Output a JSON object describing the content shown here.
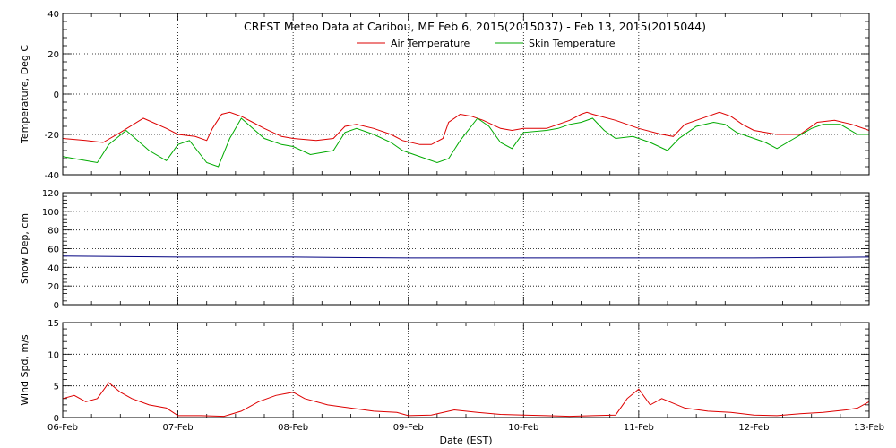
{
  "chart_data": {
    "title": "CREST Meteo Data at Caribou, ME   Feb  6, 2015(2015037) - Feb 13, 2015(2015044)",
    "xlabel": "Date (EST)",
    "x_ticks": [
      "06-Feb",
      "07-Feb",
      "08-Feb",
      "09-Feb",
      "10-Feb",
      "11-Feb",
      "12-Feb",
      "13-Feb"
    ],
    "x_range_days": [
      0,
      7
    ],
    "grid": true,
    "panels": [
      {
        "id": "temperature",
        "type": "line",
        "ylabel": "Temperature, Deg C",
        "ylim": [
          -40,
          40
        ],
        "y_ticks": [
          -40,
          -20,
          0,
          20,
          40
        ],
        "legend": "top-center",
        "series": [
          {
            "name": "Air Temperature",
            "color": "#dd0000",
            "x": [
              0,
              0.2,
              0.35,
              0.5,
              0.7,
              0.9,
              1.0,
              1.15,
              1.25,
              1.3,
              1.38,
              1.45,
              1.55,
              1.65,
              1.75,
              1.9,
              2.0,
              2.2,
              2.35,
              2.45,
              2.55,
              2.7,
              2.85,
              2.95,
              3.1,
              3.2,
              3.3,
              3.35,
              3.45,
              3.55,
              3.65,
              3.8,
              3.9,
              4.0,
              4.2,
              4.3,
              4.4,
              4.5,
              4.55,
              4.6,
              4.8,
              4.9,
              5.0,
              5.2,
              5.3,
              5.4,
              5.6,
              5.7,
              5.8,
              5.9,
              6.0,
              6.2,
              6.4,
              6.55,
              6.7,
              6.85,
              7.0
            ],
            "y": [
              -22,
              -23,
              -24,
              -19,
              -12,
              -17,
              -20,
              -21,
              -23,
              -17,
              -10,
              -9,
              -11,
              -14,
              -17,
              -21,
              -22,
              -23,
              -22,
              -16,
              -15,
              -17,
              -20,
              -23,
              -25,
              -25,
              -22,
              -14,
              -10,
              -11,
              -13,
              -17,
              -18,
              -17,
              -17,
              -15,
              -13,
              -10,
              -9,
              -10,
              -13,
              -15,
              -17,
              -20,
              -21,
              -15,
              -11,
              -9,
              -11,
              -15,
              -18,
              -20,
              -20,
              -14,
              -13,
              -15,
              -18
            ]
          },
          {
            "name": "Skin Temperature",
            "color": "#00aa00",
            "x": [
              0,
              0.2,
              0.3,
              0.4,
              0.55,
              0.75,
              0.9,
              1.0,
              1.1,
              1.25,
              1.35,
              1.45,
              1.55,
              1.65,
              1.75,
              1.9,
              2.0,
              2.15,
              2.35,
              2.45,
              2.55,
              2.7,
              2.85,
              2.95,
              3.05,
              3.25,
              3.35,
              3.45,
              3.6,
              3.7,
              3.8,
              3.9,
              4.0,
              4.2,
              4.3,
              4.4,
              4.5,
              4.6,
              4.7,
              4.8,
              4.95,
              5.1,
              5.25,
              5.35,
              5.5,
              5.65,
              5.75,
              5.85,
              6.0,
              6.1,
              6.2,
              6.35,
              6.5,
              6.6,
              6.75,
              6.9,
              7.0
            ],
            "y": [
              -31,
              -33,
              -34,
              -25,
              -18,
              -28,
              -33,
              -25,
              -23,
              -34,
              -36,
              -22,
              -12,
              -17,
              -22,
              -25,
              -26,
              -30,
              -28,
              -19,
              -17,
              -20,
              -24,
              -28,
              -30,
              -34,
              -32,
              -23,
              -12,
              -16,
              -24,
              -27,
              -19,
              -18,
              -17,
              -15,
              -14,
              -12,
              -18,
              -22,
              -21,
              -24,
              -28,
              -22,
              -16,
              -14,
              -15,
              -19,
              -22,
              -24,
              -27,
              -22,
              -17,
              -15,
              -15,
              -20,
              -20
            ]
          }
        ]
      },
      {
        "id": "snow",
        "type": "line",
        "ylabel": "Snow Dep, cm",
        "ylim": [
          0,
          120
        ],
        "y_ticks": [
          0,
          20,
          40,
          60,
          80,
          100,
          120
        ],
        "series": [
          {
            "name": "",
            "color": "#000080",
            "x": [
              0,
              1,
              2,
              3,
              4,
              5,
              6,
              7
            ],
            "y": [
              52,
              51,
              51,
              50,
              50,
              50,
              50,
              51
            ]
          }
        ]
      },
      {
        "id": "wind",
        "type": "line",
        "ylabel": "Wind Spd, m/s",
        "ylim": [
          0,
          15
        ],
        "y_ticks": [
          0,
          5,
          10,
          15
        ],
        "series": [
          {
            "name": "",
            "color": "#dd0000",
            "x": [
              0,
              0.1,
              0.2,
              0.3,
              0.4,
              0.5,
              0.6,
              0.75,
              0.9,
              1.0,
              1.2,
              1.4,
              1.55,
              1.7,
              1.85,
              2.0,
              2.1,
              2.3,
              2.5,
              2.7,
              2.9,
              3.0,
              3.2,
              3.4,
              3.6,
              3.8,
              4.0,
              4.2,
              4.4,
              4.6,
              4.8,
              4.9,
              5.0,
              5.1,
              5.2,
              5.4,
              5.6,
              5.8,
              6.0,
              6.2,
              6.4,
              6.6,
              6.8,
              6.9,
              7.0
            ],
            "y": [
              3,
              3.5,
              2.5,
              3,
              5.5,
              4,
              3,
              2,
              1.5,
              0.3,
              0.3,
              0.2,
              1,
              2.5,
              3.5,
              4,
              3,
              2,
              1.5,
              1,
              0.8,
              0.3,
              0.4,
              1.2,
              0.8,
              0.5,
              0.4,
              0.3,
              0.2,
              0.3,
              0.4,
              3,
              4.5,
              2,
              3,
              1.5,
              1,
              0.8,
              0.4,
              0.3,
              0.6,
              0.8,
              1.2,
              1.5,
              2.5
            ]
          }
        ]
      }
    ]
  }
}
